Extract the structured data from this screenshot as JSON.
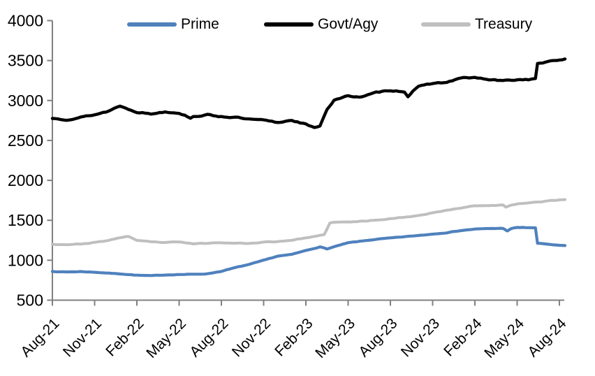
{
  "chart_data": {
    "type": "line",
    "title": "",
    "x_axis": {
      "unit": "months since Aug-21",
      "range_months": [
        0,
        36.4
      ],
      "ticks": [
        {
          "m": 0,
          "label": "Aug-21"
        },
        {
          "m": 3,
          "label": "Nov-21"
        },
        {
          "m": 6,
          "label": "Feb-22"
        },
        {
          "m": 9,
          "label": "May-22"
        },
        {
          "m": 12,
          "label": "Aug-22"
        },
        {
          "m": 15,
          "label": "Nov-22"
        },
        {
          "m": 18,
          "label": "Feb-23"
        },
        {
          "m": 21,
          "label": "May-23"
        },
        {
          "m": 24,
          "label": "Aug-23"
        },
        {
          "m": 27,
          "label": "Nov-23"
        },
        {
          "m": 30,
          "label": "Feb-24"
        },
        {
          "m": 33,
          "label": "May-24"
        },
        {
          "m": 36,
          "label": "Aug-24"
        }
      ]
    },
    "y_axis": {
      "min": 500,
      "max": 4000,
      "tick_interval": 500,
      "ticks": [
        500,
        1000,
        1500,
        2000,
        2500,
        3000,
        3500,
        4000
      ]
    },
    "grid": "off",
    "legend_position": "top",
    "style": {
      "axis_color": "#808080",
      "label_color": "#000000",
      "background": "#ffffff"
    },
    "series": [
      {
        "name": "Prime",
        "color": "#4F81BD",
        "points": [
          [
            0,
            860
          ],
          [
            1,
            853
          ],
          [
            2,
            858
          ],
          [
            3,
            850
          ],
          [
            4,
            838
          ],
          [
            5,
            828
          ],
          [
            6,
            812
          ],
          [
            7,
            806
          ],
          [
            8,
            816
          ],
          [
            9,
            822
          ],
          [
            10,
            824
          ],
          [
            11,
            830
          ],
          [
            12,
            862
          ],
          [
            13,
            908
          ],
          [
            14,
            948
          ],
          [
            15,
            998
          ],
          [
            16,
            1052
          ],
          [
            17,
            1072
          ],
          [
            18,
            1122
          ],
          [
            19,
            1168
          ],
          [
            19.5,
            1142
          ],
          [
            20,
            1168
          ],
          [
            21,
            1218
          ],
          [
            22,
            1240
          ],
          [
            23,
            1262
          ],
          [
            24,
            1278
          ],
          [
            25,
            1294
          ],
          [
            26,
            1310
          ],
          [
            27,
            1328
          ],
          [
            28,
            1346
          ],
          [
            29,
            1372
          ],
          [
            30,
            1390
          ],
          [
            31,
            1396
          ],
          [
            32,
            1400
          ],
          [
            32.3,
            1368
          ],
          [
            32.6,
            1396
          ],
          [
            33,
            1410
          ],
          [
            34,
            1408
          ],
          [
            34.3,
            1404
          ],
          [
            34.45,
            1212
          ],
          [
            35,
            1204
          ],
          [
            36,
            1186
          ],
          [
            36.4,
            1180
          ]
        ]
      },
      {
        "name": "Govt/Agy",
        "color": "#000000",
        "points": [
          [
            0,
            2775
          ],
          [
            1,
            2762
          ],
          [
            2,
            2790
          ],
          [
            3,
            2822
          ],
          [
            4,
            2868
          ],
          [
            4.8,
            2936
          ],
          [
            5,
            2918
          ],
          [
            6,
            2858
          ],
          [
            7,
            2832
          ],
          [
            8,
            2860
          ],
          [
            9,
            2846
          ],
          [
            9.8,
            2784
          ],
          [
            10,
            2800
          ],
          [
            11,
            2820
          ],
          [
            12,
            2800
          ],
          [
            13,
            2788
          ],
          [
            14,
            2762
          ],
          [
            15,
            2752
          ],
          [
            16,
            2722
          ],
          [
            17,
            2756
          ],
          [
            18,
            2702
          ],
          [
            18.6,
            2654
          ],
          [
            19,
            2682
          ],
          [
            19.5,
            2888
          ],
          [
            20,
            3005
          ],
          [
            21,
            3055
          ],
          [
            22,
            3046
          ],
          [
            23,
            3098
          ],
          [
            24,
            3128
          ],
          [
            25,
            3112
          ],
          [
            25.25,
            3052
          ],
          [
            25.6,
            3122
          ],
          [
            26,
            3170
          ],
          [
            27,
            3216
          ],
          [
            28,
            3226
          ],
          [
            29,
            3280
          ],
          [
            30,
            3286
          ],
          [
            31,
            3260
          ],
          [
            32,
            3246
          ],
          [
            33,
            3260
          ],
          [
            34,
            3266
          ],
          [
            34.3,
            3270
          ],
          [
            34.45,
            3464
          ],
          [
            35,
            3478
          ],
          [
            36,
            3506
          ],
          [
            36.4,
            3520
          ]
        ]
      },
      {
        "name": "Treasury",
        "color": "#BFBFBF",
        "points": [
          [
            0,
            1200
          ],
          [
            1,
            1197
          ],
          [
            2,
            1202
          ],
          [
            3,
            1222
          ],
          [
            4,
            1248
          ],
          [
            5,
            1290
          ],
          [
            5.4,
            1300
          ],
          [
            6,
            1248
          ],
          [
            7,
            1228
          ],
          [
            8,
            1222
          ],
          [
            9,
            1228
          ],
          [
            10,
            1206
          ],
          [
            11,
            1212
          ],
          [
            12,
            1222
          ],
          [
            13,
            1215
          ],
          [
            14,
            1210
          ],
          [
            15,
            1226
          ],
          [
            16,
            1234
          ],
          [
            17,
            1252
          ],
          [
            18,
            1280
          ],
          [
            19,
            1308
          ],
          [
            19.3,
            1316
          ],
          [
            19.7,
            1466
          ],
          [
            20,
            1475
          ],
          [
            21,
            1478
          ],
          [
            22,
            1488
          ],
          [
            23,
            1504
          ],
          [
            24,
            1520
          ],
          [
            25,
            1540
          ],
          [
            26,
            1560
          ],
          [
            27,
            1596
          ],
          [
            28,
            1624
          ],
          [
            29,
            1654
          ],
          [
            30,
            1686
          ],
          [
            31,
            1682
          ],
          [
            32,
            1690
          ],
          [
            32.2,
            1660
          ],
          [
            32.5,
            1686
          ],
          [
            33,
            1704
          ],
          [
            34,
            1720
          ],
          [
            35,
            1740
          ],
          [
            36,
            1755
          ],
          [
            36.4,
            1762
          ]
        ]
      }
    ]
  }
}
